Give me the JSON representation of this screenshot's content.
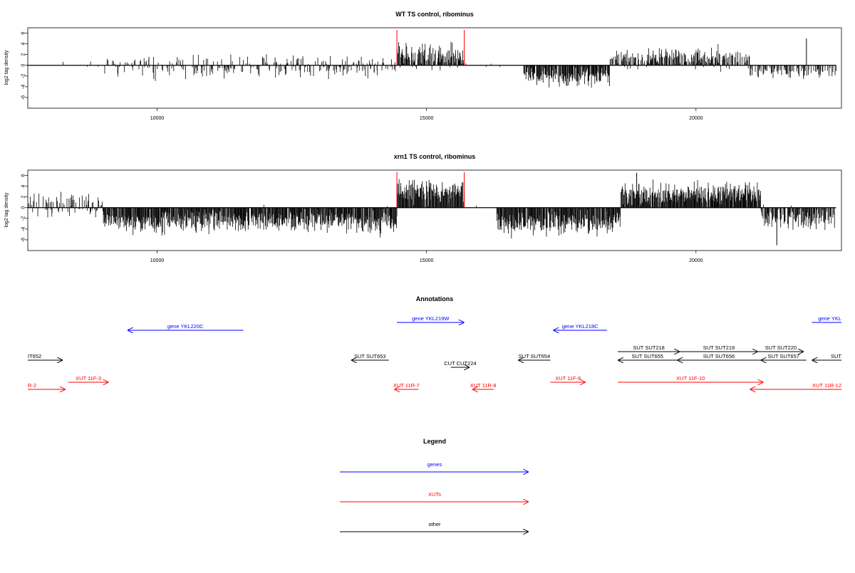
{
  "colors": {
    "genes": "#0000ff",
    "xuts": "#ff0000",
    "other": "#000000",
    "highlight": "#ff0000"
  },
  "chart_data": [
    {
      "type": "bar",
      "title": "WT TS control, ribominus",
      "ylabel": "log2 tag density",
      "xlim": [
        7600,
        22700
      ],
      "ylim": [
        -8,
        7
      ],
      "xticks": [
        10000,
        15000,
        20000
      ],
      "xtick_labels": [
        "10000",
        "15000",
        "20000"
      ],
      "yticks": [
        -6,
        -4,
        -2,
        0,
        2,
        4,
        6
      ],
      "ytick_labels": [
        "-6",
        "-4",
        "-2",
        "0",
        "2",
        "4",
        "6"
      ],
      "baseline_range": [
        7600,
        22600
      ],
      "highlight_lines": [
        14450,
        15700
      ],
      "density_profile": [
        {
          "range": [
            7600,
            9000
          ],
          "mean": 0,
          "spread": 0.4,
          "density": 0.05
        },
        {
          "range": [
            9000,
            10500
          ],
          "mean": -0.3,
          "spread": 1.5,
          "density": 0.4
        },
        {
          "range": [
            10500,
            14450
          ],
          "mean": -0.3,
          "spread": 1.5,
          "density": 0.5
        },
        {
          "range": [
            14450,
            15700
          ],
          "mean": 1.8,
          "spread": 1.6,
          "density": 0.85
        },
        {
          "range": [
            15700,
            16800
          ],
          "mean": 0,
          "spread": 0.3,
          "density": 0.05
        },
        {
          "range": [
            16800,
            18400
          ],
          "mean": -2.2,
          "spread": 1.3,
          "density": 0.9
        },
        {
          "range": [
            18400,
            21000
          ],
          "mean": 1.3,
          "spread": 1.4,
          "density": 0.7
        },
        {
          "range": [
            21000,
            22600
          ],
          "mean": -1.2,
          "spread": 1.0,
          "density": 0.5
        }
      ],
      "peaks": [
        {
          "x": 22050,
          "y": 5
        }
      ]
    },
    {
      "type": "bar",
      "title": "xrn1 TS control, ribominus",
      "ylabel": "log2 tag density",
      "xlim": [
        7600,
        22700
      ],
      "ylim": [
        -8,
        7
      ],
      "xticks": [
        10000,
        15000,
        20000
      ],
      "xtick_labels": [
        "10000",
        "15000",
        "20000"
      ],
      "yticks": [
        -6,
        -4,
        -2,
        0,
        2,
        4,
        6
      ],
      "ytick_labels": [
        "-6",
        "-4",
        "-2",
        "0",
        "2",
        "4",
        "6"
      ],
      "baseline_range": [
        7600,
        22600
      ],
      "highlight_lines": [
        14450,
        15700
      ],
      "density_profile": [
        {
          "range": [
            7600,
            9000
          ],
          "mean": 0.5,
          "spread": 1.5,
          "density": 0.5
        },
        {
          "range": [
            9000,
            14450
          ],
          "mean": -2.5,
          "spread": 1.6,
          "density": 0.95
        },
        {
          "range": [
            14450,
            15700
          ],
          "mean": 3.0,
          "spread": 1.6,
          "density": 0.95
        },
        {
          "range": [
            15700,
            16300
          ],
          "mean": 0,
          "spread": 0.3,
          "density": 0.05
        },
        {
          "range": [
            16300,
            18600
          ],
          "mean": -3.0,
          "spread": 1.6,
          "density": 0.95
        },
        {
          "range": [
            18600,
            21200
          ],
          "mean": 2.5,
          "spread": 1.5,
          "density": 0.95
        },
        {
          "range": [
            21200,
            22600
          ],
          "mean": -2.0,
          "spread": 1.5,
          "density": 0.8
        }
      ],
      "peaks": [
        {
          "x": 18900,
          "y": 6.5
        },
        {
          "x": 21500,
          "y": -7
        }
      ]
    }
  ],
  "annotations": {
    "title": "Annotations",
    "features": [
      {
        "label": "gene YKL220C",
        "category": "genes",
        "strand": "-",
        "start": 9450,
        "end": 11600,
        "row": 1
      },
      {
        "label": "gene YKL219W",
        "category": "genes",
        "strand": "+",
        "start": 14450,
        "end": 15700,
        "row": 0
      },
      {
        "label": "gene YKL218C",
        "category": "genes",
        "strand": "-",
        "start": 17350,
        "end": 18350,
        "row": 1
      },
      {
        "label": "gene YKL",
        "category": "genes",
        "strand": "+",
        "start": 22150,
        "end": 24000,
        "row": 0
      },
      {
        "label": "IT652",
        "category": "other",
        "strand": "+",
        "start": 7000,
        "end": 8250,
        "row": 2
      },
      {
        "label": "SUT SUT653",
        "category": "other",
        "strand": "-",
        "start": 13600,
        "end": 14300,
        "row": 2
      },
      {
        "label": "SUT SUT654",
        "category": "other",
        "strand": "-",
        "start": 16700,
        "end": 17300,
        "row": 2
      },
      {
        "label": "CUT CUT224",
        "category": "other",
        "strand": "+",
        "start": 15450,
        "end": 15800,
        "row": 3
      },
      {
        "label": "SUT SUT218",
        "category": "other",
        "strand": "+",
        "start": 18550,
        "end": 19700,
        "row": 4
      },
      {
        "label": "SUT SUT219",
        "category": "other",
        "strand": "+",
        "start": 19700,
        "end": 21150,
        "row": 4
      },
      {
        "label": "SUT SUT220",
        "category": "other",
        "strand": "+",
        "start": 21150,
        "end": 22000,
        "row": 4
      },
      {
        "label": "SUT SUT655",
        "category": "other",
        "strand": "-",
        "start": 18550,
        "end": 19650,
        "row": 2
      },
      {
        "label": "SUT SUT656",
        "category": "other",
        "strand": "-",
        "start": 19650,
        "end": 21200,
        "row": 2
      },
      {
        "label": "SUT SUT657",
        "category": "other",
        "strand": "-",
        "start": 21200,
        "end": 22050,
        "row": 2
      },
      {
        "label": "SUT",
        "category": "other",
        "strand": "-",
        "start": 22150,
        "end": 24000,
        "row": 2
      },
      {
        "label": "R-2",
        "category": "xuts",
        "strand": "+",
        "start": 7000,
        "end": 8300,
        "row": 6
      },
      {
        "label": "XUT 11F-3",
        "category": "xuts",
        "strand": "+",
        "start": 8350,
        "end": 9100,
        "row": 5
      },
      {
        "label": "XUT 11R-7",
        "category": "xuts",
        "strand": "-",
        "start": 14400,
        "end": 14850,
        "row": 6
      },
      {
        "label": "XUT 11R-8",
        "category": "xuts",
        "strand": "-",
        "start": 15850,
        "end": 16250,
        "row": 6
      },
      {
        "label": "XUT 11F-9",
        "category": "xuts",
        "strand": "+",
        "start": 17300,
        "end": 17950,
        "row": 5
      },
      {
        "label": "XUT 11F-10",
        "category": "xuts",
        "strand": "+",
        "start": 18550,
        "end": 21250,
        "row": 5
      },
      {
        "label": "XUT 11R-12",
        "category": "xuts",
        "strand": "-",
        "start": 21000,
        "end": 24000,
        "row": 6
      }
    ]
  },
  "legend": {
    "title": "Legend",
    "items": [
      {
        "label": "genes",
        "category": "genes"
      },
      {
        "label": "XUTs",
        "category": "xuts"
      },
      {
        "label": "other",
        "category": "other"
      }
    ]
  }
}
